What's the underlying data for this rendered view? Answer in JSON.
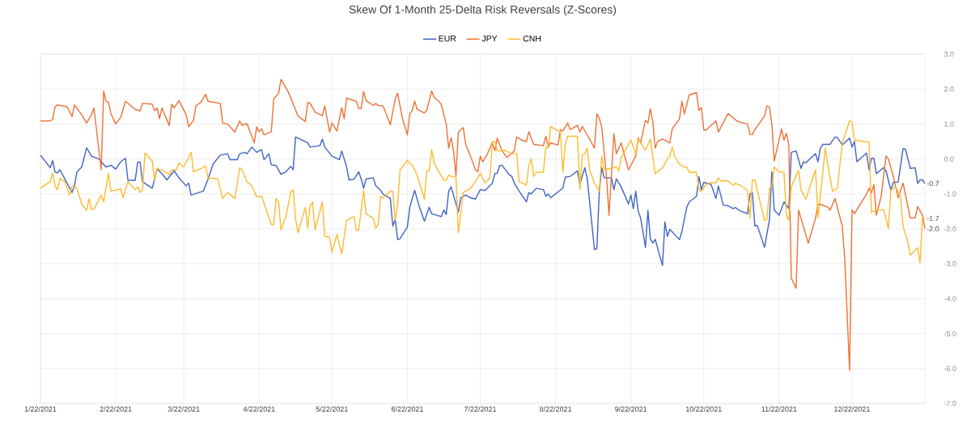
{
  "chart_data": {
    "type": "line",
    "title": "Skew Of 1-Month 25-Delta Risk Reversals (Z-Scores)",
    "xlim": [
      "2021-01-22",
      "2022-01-21"
    ],
    "xticks": [
      {
        "value": "2021-01-22",
        "label": "1/22/2021"
      },
      {
        "value": "2021-02-22",
        "label": "2/22/2021"
      },
      {
        "value": "2021-03-22",
        "label": "3/22/2021"
      },
      {
        "value": "2021-04-22",
        "label": "4/22/2021"
      },
      {
        "value": "2021-05-22",
        "label": "5/22/2021"
      },
      {
        "value": "2021-06-22",
        "label": "6/22/2021"
      },
      {
        "value": "2021-07-22",
        "label": "7/22/2021"
      },
      {
        "value": "2021-08-22",
        "label": "8/22/2021"
      },
      {
        "value": "2021-09-22",
        "label": "9/22/2021"
      },
      {
        "value": "2021-10-22",
        "label": "10/22/2021"
      },
      {
        "value": "2021-11-22",
        "label": "11/22/2021"
      },
      {
        "value": "2021-12-22",
        "label": "12/22/2021"
      }
    ],
    "ylim": [
      -7,
      3
    ],
    "yticks": [
      {
        "value": 3,
        "label": "3.0"
      },
      {
        "value": 2,
        "label": "2.0"
      },
      {
        "value": 1,
        "label": "1.0"
      },
      {
        "value": 0,
        "label": "0.0"
      },
      {
        "value": -1,
        "label": "-1.0"
      },
      {
        "value": -2,
        "label": "-2.0"
      },
      {
        "value": -3,
        "label": "-3.0"
      },
      {
        "value": -4,
        "label": "-4.0"
      },
      {
        "value": -5,
        "label": "-5.0"
      },
      {
        "value": -6,
        "label": "-6.0"
      },
      {
        "value": -7,
        "label": "-7.0"
      }
    ],
    "grid": true,
    "legend": "top",
    "annotations": [
      {
        "text": "-0.7",
        "x": "2022-01-21",
        "y": -0.7
      },
      {
        "text": "-1.7",
        "x": "2022-01-21",
        "y": -1.7
      },
      {
        "text": "-2.0",
        "x": "2022-01-21",
        "y": -2.0
      }
    ],
    "series": [
      {
        "name": "EUR",
        "color": "#4263c6",
        "x": [
          "2021-01-22",
          "2021-01-26",
          "2021-01-27",
          "2021-01-28",
          "2021-01-29",
          "2021-01-30",
          "2021-02-01",
          "2021-02-04",
          "2021-02-05",
          "2021-02-06",
          "2021-02-08",
          "2021-02-10",
          "2021-02-12",
          "2021-02-15",
          "2021-02-18",
          "2021-02-20",
          "2021-02-22",
          "2021-02-24",
          "2021-02-26",
          "2021-02-27",
          "2021-03-02",
          "2021-03-03",
          "2021-03-04",
          "2021-03-05",
          "2021-03-09",
          "2021-03-11",
          "2021-03-13",
          "2021-03-15",
          "2021-03-18",
          "2021-03-20",
          "2021-03-23",
          "2021-03-24",
          "2021-03-25",
          "2021-03-30",
          "2021-04-01",
          "2021-04-03",
          "2021-04-06",
          "2021-04-09",
          "2021-04-10",
          "2021-04-13",
          "2021-04-14",
          "2021-04-16",
          "2021-04-17",
          "2021-04-19",
          "2021-04-21",
          "2021-04-23",
          "2021-04-24",
          "2021-04-26",
          "2021-04-27",
          "2021-04-29",
          "2021-05-01",
          "2021-05-03",
          "2021-05-05",
          "2021-05-06",
          "2021-05-07",
          "2021-05-12",
          "2021-05-13",
          "2021-05-17",
          "2021-05-18",
          "2021-05-19",
          "2021-05-22",
          "2021-05-25",
          "2021-05-26",
          "2021-05-28",
          "2021-05-29",
          "2021-05-31",
          "2021-06-02",
          "2021-06-03",
          "2021-06-04",
          "2021-06-05",
          "2021-06-08",
          "2021-06-09",
          "2021-06-11",
          "2021-06-12",
          "2021-06-15",
          "2021-06-16",
          "2021-06-17",
          "2021-06-18",
          "2021-06-19",
          "2021-06-22",
          "2021-06-23",
          "2021-06-25",
          "2021-06-27",
          "2021-06-29",
          "2021-07-01",
          "2021-07-02",
          "2021-07-06",
          "2021-07-07",
          "2021-07-08",
          "2021-07-09",
          "2021-07-10",
          "2021-07-13",
          "2021-07-14",
          "2021-07-16",
          "2021-07-18",
          "2021-07-20",
          "2021-07-22",
          "2021-07-24",
          "2021-07-27",
          "2021-07-28",
          "2021-07-29",
          "2021-07-30",
          "2021-07-31",
          "2021-08-03",
          "2021-08-04",
          "2021-08-05",
          "2021-08-07",
          "2021-08-10",
          "2021-08-11",
          "2021-08-12",
          "2021-08-14",
          "2021-08-17",
          "2021-08-18",
          "2021-08-19",
          "2021-08-20",
          "2021-08-22",
          "2021-08-25",
          "2021-08-26",
          "2021-08-28",
          "2021-08-31",
          "2021-09-01",
          "2021-09-03",
          "2021-09-04",
          "2021-09-07",
          "2021-09-08",
          "2021-09-09",
          "2021-09-10",
          "2021-09-11",
          "2021-09-14",
          "2021-09-15",
          "2021-09-16",
          "2021-09-18",
          "2021-09-21",
          "2021-09-22",
          "2021-09-23",
          "2021-09-24",
          "2021-09-25",
          "2021-09-26",
          "2021-09-28",
          "2021-09-29",
          "2021-09-30",
          "2021-10-01",
          "2021-10-02",
          "2021-10-05",
          "2021-10-06",
          "2021-10-07",
          "2021-10-08",
          "2021-10-12",
          "2021-10-13",
          "2021-10-15",
          "2021-10-16",
          "2021-10-19",
          "2021-10-20",
          "2021-10-21",
          "2021-10-22",
          "2021-10-25",
          "2021-10-27",
          "2021-10-28",
          "2021-10-30",
          "2021-11-01",
          "2021-11-03",
          "2021-11-04",
          "2021-11-06",
          "2021-11-09",
          "2021-11-10",
          "2021-11-11",
          "2021-11-12",
          "2021-11-13",
          "2021-11-16",
          "2021-11-18",
          "2021-11-19",
          "2021-11-20",
          "2021-11-22",
          "2021-11-24",
          "2021-11-26",
          "2021-11-27",
          "2021-11-29",
          "2021-12-01",
          "2021-12-02",
          "2021-12-03",
          "2021-12-07",
          "2021-12-08",
          "2021-12-09",
          "2021-12-10",
          "2021-12-13",
          "2021-12-15",
          "2021-12-16",
          "2021-12-18",
          "2021-12-21",
          "2021-12-22",
          "2021-12-23",
          "2021-12-24",
          "2021-12-28",
          "2021-12-29",
          "2021-12-30",
          "2021-12-31",
          "2022-01-01",
          "2022-01-04",
          "2022-01-05",
          "2022-01-07",
          "2022-01-08",
          "2022-01-10",
          "2022-01-12",
          "2022-01-13",
          "2022-01-15",
          "2022-01-17",
          "2022-01-18",
          "2022-01-19",
          "2022-01-20",
          "2022-01-21"
        ],
        "values": [
          0.11,
          -0.25,
          -0.05,
          -0.37,
          -0.4,
          -0.31,
          -0.57,
          -0.96,
          -0.77,
          -0.37,
          -0.23,
          0.32,
          0.08,
          0,
          -0.23,
          -0.18,
          -0.29,
          -0.08,
          0.02,
          -0.61,
          -0.61,
          -0.09,
          -0.09,
          -0.65,
          -0.84,
          -0.29,
          -0.42,
          -0.6,
          -0.34,
          -0.54,
          -0.77,
          -0.69,
          -1.03,
          -0.92,
          -0.57,
          -0.15,
          0.11,
          0.15,
          -0.02,
          -0.02,
          0.15,
          0.19,
          0.15,
          0.34,
          0.19,
          0.27,
          -0.02,
          0.15,
          -0.17,
          -0.19,
          -0.44,
          -0.37,
          -0.21,
          -0.31,
          0.63,
          0.46,
          0.34,
          0.38,
          0.57,
          0.34,
          0.08,
          -0.02,
          0.23,
          -0.23,
          -0.6,
          -0.58,
          -0.37,
          -0.57,
          -0.84,
          -0.57,
          -0.54,
          -0.77,
          -0.9,
          -1.01,
          -1.13,
          -1.92,
          -1.72,
          -2.31,
          -2.28,
          -1.95,
          -1.38,
          -0.9,
          -1.38,
          -1.78,
          -1.38,
          -1.57,
          -1.65,
          -1.46,
          -1.59,
          -0.92,
          -0.8,
          -1.52,
          -1.11,
          -1.03,
          -1.11,
          -1.15,
          -0.88,
          -0.9,
          -0.69,
          -0.42,
          -0.41,
          -0.19,
          -0.18,
          -0.46,
          -0.5,
          -0.69,
          -0.92,
          -1.23,
          -0.96,
          -1.0,
          -0.84,
          -0.88,
          -1.07,
          -1.0,
          -1.11,
          -1.0,
          -0.83,
          -0.52,
          -0.5,
          -0.34,
          -0.73,
          -0.25,
          -0.54,
          -2.59,
          -2.57,
          -0.92,
          -0.25,
          -0.54,
          -0.54,
          -0.88,
          -0.57,
          -0.8,
          -1.29,
          -1.03,
          -1.42,
          -0.92,
          -1.49,
          -1.69,
          -2.53,
          -1.47,
          -2.28,
          -2.41,
          -2.3,
          -3.05,
          -1.8,
          -2.22,
          -2.01,
          -2.31,
          -2.07,
          -1.38,
          -1.23,
          -1.07,
          -0.5,
          -0.88,
          -0.67,
          -0.73,
          -1.13,
          -0.77,
          -1.32,
          -1.34,
          -1.42,
          -1.39,
          -1.49,
          -1.57,
          -1.0,
          -0.96,
          -1.92,
          -1.9,
          -2.53,
          -1.75,
          -0.37,
          -1.46,
          -1.61,
          -1.23,
          -1.42,
          0.19,
          0.23,
          -0.27,
          -0.08,
          -0.11,
          0.15,
          -0.08,
          0.31,
          0.42,
          0.42,
          0.63,
          0.61,
          0.4,
          0.6,
          0.34,
          0.5,
          -0.08,
          0.17,
          -0.31,
          0.02,
          0.02,
          -0.42,
          -0.25,
          -0.34,
          -0.9,
          -0.67,
          -0.66,
          0.29,
          0.28,
          -0.27,
          -0.25,
          -0.7,
          -0.6,
          -0.6,
          -0.7
        ]
      },
      {
        "name": "JPY",
        "color": "#ee7136",
        "x": [
          "2021-01-22",
          "2021-01-26",
          "2021-01-27",
          "2021-01-28",
          "2021-01-29",
          "2021-02-02",
          "2021-02-04",
          "2021-02-05",
          "2021-02-08",
          "2021-02-10",
          "2021-02-11",
          "2021-02-12",
          "2021-02-13",
          "2021-02-16",
          "2021-02-17",
          "2021-02-18",
          "2021-02-19",
          "2021-02-20",
          "2021-02-22",
          "2021-02-24",
          "2021-02-26",
          "2021-03-02",
          "2021-03-04",
          "2021-03-05",
          "2021-03-09",
          "2021-03-10",
          "2021-03-11",
          "2021-03-12",
          "2021-03-13",
          "2021-03-16",
          "2021-03-17",
          "2021-03-18",
          "2021-03-20",
          "2021-03-23",
          "2021-03-24",
          "2021-03-26",
          "2021-03-27",
          "2021-03-29",
          "2021-03-31",
          "2021-04-01",
          "2021-04-06",
          "2021-04-07",
          "2021-04-09",
          "2021-04-12",
          "2021-04-14",
          "2021-04-15",
          "2021-04-16",
          "2021-04-17",
          "2021-04-20",
          "2021-04-21",
          "2021-04-22",
          "2021-04-23",
          "2021-04-24",
          "2021-04-27",
          "2021-04-28",
          "2021-04-30",
          "2021-05-01",
          "2021-05-04",
          "2021-05-08",
          "2021-05-11",
          "2021-05-12",
          "2021-05-13",
          "2021-05-15",
          "2021-05-18",
          "2021-05-19",
          "2021-05-21",
          "2021-05-22",
          "2021-05-24",
          "2021-05-26",
          "2021-05-27",
          "2021-05-28",
          "2021-05-29",
          "2021-06-01",
          "2021-06-02",
          "2021-06-03",
          "2021-06-04",
          "2021-06-05",
          "2021-06-08",
          "2021-06-09",
          "2021-06-10",
          "2021-06-12",
          "2021-06-15",
          "2021-06-17",
          "2021-06-18",
          "2021-06-20",
          "2021-06-22",
          "2021-06-23",
          "2021-06-24",
          "2021-06-25",
          "2021-06-26",
          "2021-06-29",
          "2021-06-30",
          "2021-07-02",
          "2021-07-03",
          "2021-07-05",
          "2021-07-06",
          "2021-07-08",
          "2021-07-09",
          "2021-07-10",
          "2021-07-11",
          "2021-07-12",
          "2021-07-13",
          "2021-07-15",
          "2021-07-16",
          "2021-07-18",
          "2021-07-20",
          "2021-07-21",
          "2021-07-22",
          "2021-07-23",
          "2021-07-25",
          "2021-07-27",
          "2021-07-28",
          "2021-07-29",
          "2021-07-31",
          "2021-08-02",
          "2021-08-05",
          "2021-08-06",
          "2021-08-08",
          "2021-08-10",
          "2021-08-11",
          "2021-08-13",
          "2021-08-17",
          "2021-08-18",
          "2021-08-19",
          "2021-08-20",
          "2021-08-23",
          "2021-08-24",
          "2021-08-25",
          "2021-08-27",
          "2021-08-28",
          "2021-08-31",
          "2021-09-01",
          "2021-09-02",
          "2021-09-04",
          "2021-09-07",
          "2021-09-08",
          "2021-09-09",
          "2021-09-10",
          "2021-09-12",
          "2021-09-13",
          "2021-09-15",
          "2021-09-16",
          "2021-09-18",
          "2021-09-21",
          "2021-09-24",
          "2021-09-25",
          "2021-09-26",
          "2021-09-28",
          "2021-09-29",
          "2021-09-30",
          "2021-10-01",
          "2021-10-02",
          "2021-10-03",
          "2021-10-05",
          "2021-10-08",
          "2021-10-09",
          "2021-10-12",
          "2021-10-13",
          "2021-10-14",
          "2021-10-16",
          "2021-10-19",
          "2021-10-20",
          "2021-10-21",
          "2021-10-22",
          "2021-10-23",
          "2021-10-27",
          "2021-10-28",
          "2021-11-01",
          "2021-11-05",
          "2021-11-09",
          "2021-11-10",
          "2021-11-11",
          "2021-11-12",
          "2021-11-16",
          "2021-11-17",
          "2021-11-18",
          "2021-11-19",
          "2021-11-20",
          "2021-11-23",
          "2021-11-24",
          "2021-11-25",
          "2021-11-26",
          "2021-11-27",
          "2021-11-29",
          "2021-11-30",
          "2021-12-04",
          "2021-12-07",
          "2021-12-08",
          "2021-12-09",
          "2021-12-12",
          "2021-12-13",
          "2021-12-15",
          "2021-12-18",
          "2021-12-19",
          "2021-12-21",
          "2021-12-22",
          "2021-12-23",
          "2021-12-25",
          "2021-12-28",
          "2021-12-29",
          "2021-12-30",
          "2021-12-31",
          "2022-01-01",
          "2022-01-03",
          "2022-01-05",
          "2022-01-06",
          "2022-01-08",
          "2022-01-10",
          "2022-01-12",
          "2022-01-14",
          "2022-01-15",
          "2022-01-17",
          "2022-01-18",
          "2022-01-20",
          "2022-01-21"
        ],
        "values": [
          1.09,
          1.09,
          1.13,
          1.49,
          1.55,
          1.49,
          1.21,
          1.55,
          1.26,
          1.03,
          1.15,
          1.26,
          1.46,
          -0.31,
          1.94,
          1.65,
          1.62,
          1.3,
          1.0,
          1.19,
          1.65,
          1.42,
          1.38,
          1.59,
          1.57,
          1.38,
          1.46,
          1.15,
          1.46,
          0.96,
          1.57,
          1.46,
          1.67,
          1.26,
          0.92,
          1.11,
          1.53,
          1.62,
          1.85,
          1.65,
          1.59,
          1.03,
          1.0,
          0.77,
          1.09,
          0.96,
          1.0,
          1.01,
          0.46,
          0.92,
          0.78,
          0.86,
          0.69,
          0.78,
          1.72,
          1.88,
          2.28,
          1.92,
          1.23,
          1.07,
          1.62,
          1.59,
          1.34,
          1.24,
          1.52,
          0.77,
          1.03,
          0.8,
          1.47,
          1.15,
          1.75,
          1.72,
          1.65,
          1.44,
          1.44,
          1.93,
          1.67,
          1.53,
          1.59,
          1.53,
          1.52,
          0.98,
          1.72,
          1.88,
          1.15,
          0.69,
          1.29,
          1.39,
          1.66,
          1.42,
          1.32,
          1.39,
          1.95,
          1.76,
          1.65,
          1.55,
          1.0,
          0.31,
          0.61,
          0.23,
          -0.48,
          0.77,
          0.9,
          0.42,
          0.08,
          -0.31,
          -0.37,
          0.08,
          -0.08,
          0.15,
          0.48,
          0.23,
          0.6,
          0.23,
          0.04,
          0.23,
          0.63,
          0.54,
          0.5,
          0.78,
          0.42,
          0.38,
          0.65,
          0.34,
          0.46,
          0.4,
          0.83,
          0.8,
          1.03,
          0.84,
          0.96,
          0.77,
          0.93,
          0.69,
          0.31,
          1.29,
          1.16,
          0.92,
          -0.54,
          -1.61,
          0.73,
          0.15,
          0.46,
          -0.31,
          0.08,
          0.61,
          0.46,
          1.11,
          1.03,
          1.44,
          1.07,
          0.31,
          0.5,
          0.57,
          0.46,
          0.86,
          1.15,
          1.65,
          1.29,
          1.83,
          1.9,
          1.39,
          1.47,
          0.83,
          0.83,
          1.09,
          0.77,
          1.3,
          1.07,
          1.0,
          0.7,
          0.7,
          0.84,
          1.23,
          1.52,
          1.49,
          1.0,
          -0.06,
          0.86,
          0.54,
          0.73,
          0.4,
          -3.41,
          -3.7,
          -1.46,
          -2.41,
          -1.69,
          -1.3,
          -1.3,
          -1.38,
          -1.47,
          -1.13,
          -1.92,
          -2.84,
          -6.05,
          -1.46,
          -1.57,
          -1.34,
          -1.0,
          -0.84,
          -0.98,
          -0.73,
          -1.61,
          -1.07,
          0.09,
          0,
          -0.5,
          -1.11,
          -0.69,
          -1.36,
          -1.69,
          -1.69,
          -1.36,
          -1.61,
          -2.0
        ]
      },
      {
        "name": "CNH",
        "color": "#fdbb2e",
        "x": [
          "2021-01-22",
          "2021-01-26",
          "2021-01-27",
          "2021-01-28",
          "2021-01-29",
          "2021-01-30",
          "2021-02-01",
          "2021-02-03",
          "2021-02-04",
          "2021-02-05",
          "2021-02-06",
          "2021-02-08",
          "2021-02-10",
          "2021-02-11",
          "2021-02-12",
          "2021-02-13",
          "2021-02-16",
          "2021-02-17",
          "2021-02-19",
          "2021-02-20",
          "2021-02-24",
          "2021-02-25",
          "2021-02-27",
          "2021-03-02",
          "2021-03-03",
          "2021-03-04",
          "2021-03-05",
          "2021-03-06",
          "2021-03-09",
          "2021-03-10",
          "2021-03-11",
          "2021-03-13",
          "2021-03-16",
          "2021-03-17",
          "2021-03-19",
          "2021-03-20",
          "2021-03-22",
          "2021-03-25",
          "2021-03-26",
          "2021-03-31",
          "2021-04-01",
          "2021-04-05",
          "2021-04-07",
          "2021-04-09",
          "2021-04-12",
          "2021-04-14",
          "2021-04-15",
          "2021-04-17",
          "2021-04-19",
          "2021-04-21",
          "2021-04-22",
          "2021-04-23",
          "2021-04-27",
          "2021-04-28",
          "2021-04-29",
          "2021-04-30",
          "2021-05-01",
          "2021-05-03",
          "2021-05-05",
          "2021-05-06",
          "2021-05-07",
          "2021-05-08",
          "2021-05-11",
          "2021-05-12",
          "2021-05-13",
          "2021-05-14",
          "2021-05-15",
          "2021-05-18",
          "2021-05-19",
          "2021-05-21",
          "2021-05-22",
          "2021-05-24",
          "2021-05-26",
          "2021-05-28",
          "2021-05-31",
          "2021-06-01",
          "2021-06-02",
          "2021-06-04",
          "2021-06-05",
          "2021-06-08",
          "2021-06-09",
          "2021-06-10",
          "2021-06-11",
          "2021-06-12",
          "2021-06-15",
          "2021-06-16",
          "2021-06-17",
          "2021-06-18",
          "2021-06-19",
          "2021-06-22",
          "2021-06-23",
          "2021-06-24",
          "2021-06-26",
          "2021-06-29",
          "2021-06-30",
          "2021-07-01",
          "2021-07-02",
          "2021-07-03",
          "2021-07-06",
          "2021-07-07",
          "2021-07-08",
          "2021-07-09",
          "2021-07-10",
          "2021-07-12",
          "2021-07-13",
          "2021-07-15",
          "2021-07-18",
          "2021-07-20",
          "2021-07-22",
          "2021-07-24",
          "2021-07-26",
          "2021-07-27",
          "2021-07-28",
          "2021-07-29",
          "2021-07-30",
          "2021-08-01",
          "2021-08-04",
          "2021-08-06",
          "2021-08-07",
          "2021-08-10",
          "2021-08-11",
          "2021-08-12",
          "2021-08-13",
          "2021-08-14",
          "2021-08-17",
          "2021-08-18",
          "2021-08-19",
          "2021-08-20",
          "2021-08-22",
          "2021-08-24",
          "2021-08-25",
          "2021-08-26",
          "2021-08-27",
          "2021-08-31",
          "2021-09-01",
          "2021-09-02",
          "2021-09-03",
          "2021-09-04",
          "2021-09-05",
          "2021-09-07",
          "2021-09-09",
          "2021-09-10",
          "2021-09-11",
          "2021-09-16",
          "2021-09-17",
          "2021-09-18",
          "2021-09-22",
          "2021-09-24",
          "2021-09-25",
          "2021-09-28",
          "2021-09-30",
          "2021-10-02",
          "2021-10-05",
          "2021-10-07",
          "2021-10-08",
          "2021-10-09",
          "2021-10-10",
          "2021-10-12",
          "2021-10-14",
          "2021-10-15",
          "2021-10-16",
          "2021-10-19",
          "2021-10-20",
          "2021-10-21",
          "2021-10-23",
          "2021-10-25",
          "2021-10-27",
          "2021-10-28",
          "2021-10-29",
          "2021-11-01",
          "2021-11-03",
          "2021-11-04",
          "2021-11-06",
          "2021-11-09",
          "2021-11-10",
          "2021-11-11",
          "2021-11-12",
          "2021-11-16",
          "2021-11-17",
          "2021-11-18",
          "2021-11-19",
          "2021-11-20",
          "2021-11-22",
          "2021-11-24",
          "2021-11-25",
          "2021-11-26",
          "2021-11-27",
          "2021-11-30",
          "2021-12-01",
          "2021-12-03",
          "2021-12-07",
          "2021-12-08",
          "2021-12-11",
          "2021-12-12",
          "2021-12-14",
          "2021-12-16",
          "2021-12-18",
          "2021-12-21",
          "2021-12-22",
          "2021-12-23",
          "2021-12-29",
          "2021-12-30",
          "2022-01-01",
          "2022-01-04",
          "2022-01-06",
          "2022-01-07",
          "2022-01-09",
          "2022-01-11",
          "2022-01-12",
          "2022-01-14",
          "2022-01-15",
          "2022-01-18",
          "2022-01-19",
          "2022-01-20",
          "2022-01-21"
        ],
        "values": [
          -0.84,
          -0.65,
          -0.4,
          -0.77,
          -0.88,
          -0.55,
          -0.65,
          -1.03,
          -0.77,
          -0.79,
          -0.84,
          -1.3,
          -1.47,
          -1.13,
          -1.44,
          -1.44,
          -1.03,
          -1.23,
          -0.42,
          -0.92,
          -0.86,
          -1.11,
          -0.65,
          -0.88,
          -0.8,
          -0.96,
          -0.9,
          0.17,
          -0.06,
          -0.61,
          -0.27,
          -0.32,
          -0.44,
          -0.31,
          -0.31,
          -0.11,
          -0.23,
          0.19,
          -0.37,
          -0.21,
          -0.54,
          -0.57,
          -1.13,
          -0.96,
          -1.13,
          -0.25,
          -0.31,
          -0.65,
          -0.77,
          -1.09,
          -1.07,
          -1.07,
          -1.88,
          -1.88,
          -1.13,
          -1.23,
          -2.03,
          -1.65,
          -0.96,
          -0.88,
          -1.72,
          -2.11,
          -1.39,
          -1.98,
          -1.34,
          -1.23,
          -2.03,
          -1.23,
          -2.21,
          -2.24,
          -2.67,
          -2.16,
          -2.72,
          -1.76,
          -1.65,
          -2.05,
          -2.03,
          -0.9,
          -1.57,
          -1.7,
          -1.98,
          -1.88,
          -1.07,
          -1.11,
          -0.92,
          -0.93,
          -1.76,
          -1.3,
          -0.31,
          -0.04,
          -0.14,
          -0.17,
          -0.46,
          -1.15,
          -0.34,
          -0.34,
          0.27,
          -0.11,
          -0.5,
          -0.61,
          -0.61,
          -0.46,
          -0.5,
          -0.51,
          -2.11,
          -0.96,
          -0.84,
          -0.65,
          -0.41,
          -0.69,
          -0.54,
          0.5,
          0.5,
          0.23,
          0.23,
          0.25,
          0.15,
          0.15,
          -0.65,
          -0.75,
          -0.19,
          0,
          -0.5,
          -0.38,
          -0.38,
          0.34,
          0.31,
          0.93,
          0.84,
          0.78,
          -0.38,
          0.42,
          0.65,
          0.65,
          -0.88,
          0.11,
          0.15,
          0.31,
          -0.31,
          -0.69,
          -0.92,
          0.08,
          -0.31,
          -0.23,
          -0.34,
          0.04,
          0.54,
          0.15,
          0.57,
          0.25,
          0.57,
          -0.42,
          -0.25,
          0,
          0.08,
          0.34,
          0.08,
          -0.15,
          -0.23,
          -0.23,
          -0.38,
          -0.38,
          -0.88,
          -0.92,
          -0.73,
          -0.67,
          -0.69,
          -0.54,
          -0.63,
          -0.63,
          -0.75,
          -0.7,
          -0.75,
          -0.9,
          -1.69,
          -0.6,
          -0.6,
          -1.76,
          -1.72,
          -0.84,
          -0.8,
          -0.23,
          -0.37,
          -0.38,
          -1.61,
          -1.75,
          -0.8,
          -0.32,
          -0.88,
          -1.15,
          -0.31,
          -1.69,
          0.31,
          -0.15,
          -0.92,
          -0.84,
          0.46,
          1.09,
          1.06,
          0.54,
          0.48,
          -1.53,
          -1.46,
          -1.46,
          -1.99,
          -0.88,
          -0.8,
          -1.07,
          -1.92,
          -2.38,
          -2.76,
          -2.54,
          -2.97,
          -1.65,
          -1.7
        ]
      }
    ]
  }
}
